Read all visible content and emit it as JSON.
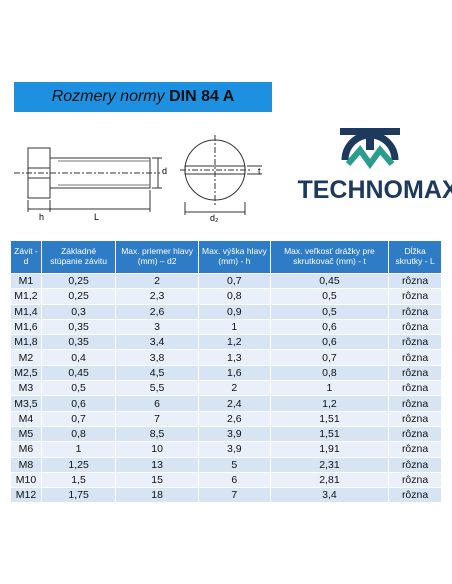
{
  "banner": {
    "prefix": "Rozmery normy",
    "bold": "DIN 84 A"
  },
  "drawing": {
    "d": "d",
    "h": "h",
    "L": "L",
    "t": "t",
    "d2": "d₂"
  },
  "logo": "TECHNOMAX",
  "table": {
    "header": [
      "Závit - d",
      "Základné stúpanie závitu",
      "Max. priemer hlavy (mm) – d2",
      "Max. výška hlavy (mm) - h",
      "Max. veľkosť drážky pre skrutkovač (mm) - t",
      "Dĺžka skrutky - L"
    ],
    "rows": [
      [
        "M1",
        "0,25",
        "2",
        "0,7",
        "0,45",
        "rôzna"
      ],
      [
        "M1,2",
        "0,25",
        "2,3",
        "0,8",
        "0,5",
        "rôzna"
      ],
      [
        "M1,4",
        "0,3",
        "2,6",
        "0,9",
        "0,5",
        "rôzna"
      ],
      [
        "M1,6",
        "0,35",
        "3",
        "1",
        "0,6",
        "rôzna"
      ],
      [
        "M1,8",
        "0,35",
        "3,4",
        "1,2",
        "0,6",
        "rôzna"
      ],
      [
        "M2",
        "0,4",
        "3,8",
        "1,3",
        "0,7",
        "rôzna"
      ],
      [
        "M2,5",
        "0,45",
        "4,5",
        "1,6",
        "0,8",
        "rôzna"
      ],
      [
        "M3",
        "0,5",
        "5,5",
        "2",
        "1",
        "rôzna"
      ],
      [
        "M3,5",
        "0,6",
        "6",
        "2,4",
        "1,2",
        "rôzna"
      ],
      [
        "M4",
        "0,7",
        "7",
        "2,6",
        "1,51",
        "rôzna"
      ],
      [
        "M5",
        "0,8",
        "8,5",
        "3,9",
        "1,51",
        "rôzna"
      ],
      [
        "M6",
        "1",
        "10",
        "3,9",
        "1,91",
        "rôzna"
      ],
      [
        "M8",
        "1,25",
        "13",
        "5",
        "2,31",
        "rôzna"
      ],
      [
        "M10",
        "1,5",
        "15",
        "6",
        "2,81",
        "rôzna"
      ],
      [
        "M12",
        "1,75",
        "18",
        "7",
        "3,4",
        "rôzna"
      ]
    ]
  }
}
